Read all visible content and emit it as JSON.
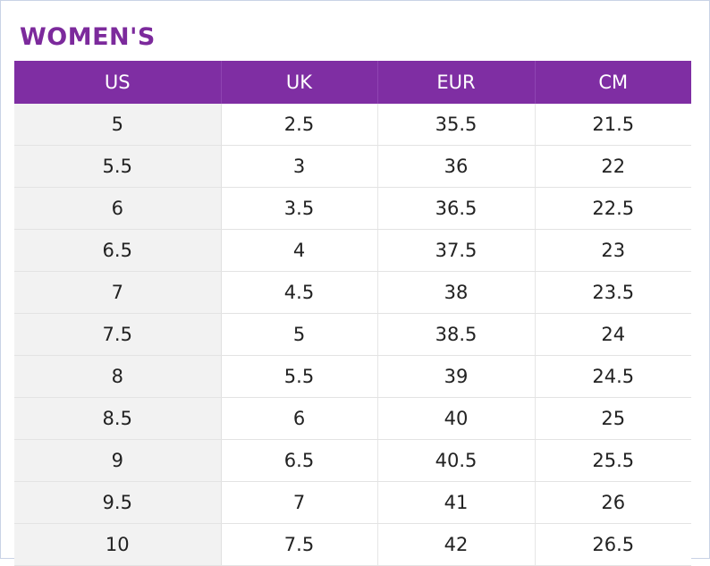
{
  "title": "WOMEN'S",
  "table": {
    "headers": [
      "US",
      "UK",
      "EUR",
      "CM"
    ],
    "rows": [
      [
        "5",
        "2.5",
        "35.5",
        "21.5"
      ],
      [
        "5.5",
        "3",
        "36",
        "22"
      ],
      [
        "6",
        "3.5",
        "36.5",
        "22.5"
      ],
      [
        "6.5",
        "4",
        "37.5",
        "23"
      ],
      [
        "7",
        "4.5",
        "38",
        "23.5"
      ],
      [
        "7.5",
        "5",
        "38.5",
        "24"
      ],
      [
        "8",
        "5.5",
        "39",
        "24.5"
      ],
      [
        "8.5",
        "6",
        "40",
        "25"
      ],
      [
        "9",
        "6.5",
        "40.5",
        "25.5"
      ],
      [
        "9.5",
        "7",
        "41",
        "26"
      ],
      [
        "10",
        "7.5",
        "42",
        "26.5"
      ]
    ]
  },
  "colors": {
    "title": "#7c2a9c",
    "header_bg": "#7f2ea3",
    "header_text": "#ffffff",
    "first_column_bg": "#f2f2f2"
  }
}
